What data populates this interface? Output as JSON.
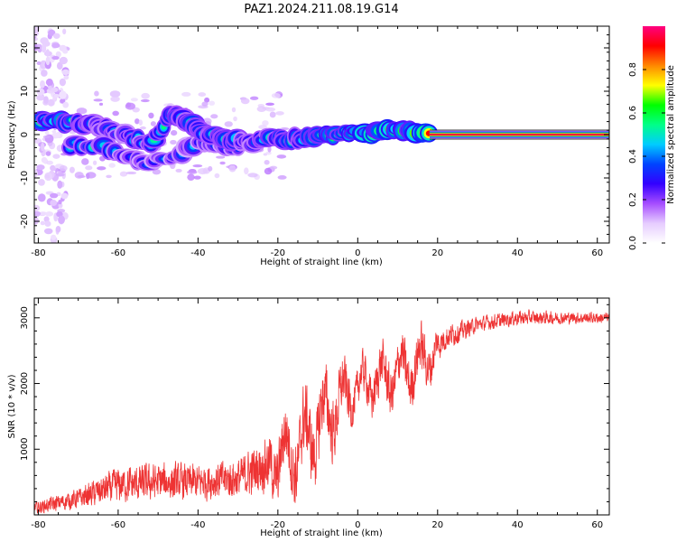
{
  "title": "PAZ1.2024.211.08.19.G14",
  "chart_data": [
    {
      "type": "heatmap",
      "xlabel": "Height of straight line (km)",
      "ylabel": "Frequency (Hz)",
      "xlim": [
        -81,
        63
      ],
      "ylim": [
        -25,
        25
      ],
      "xticks": [
        -80,
        -60,
        -40,
        -20,
        0,
        20,
        40,
        60
      ],
      "yticks": [
        -20,
        -10,
        0,
        10,
        20
      ],
      "colorbar": {
        "label": "Normalized spectral amplitude",
        "ticks": [
          0.0,
          0.2,
          0.4,
          0.6,
          0.8
        ],
        "range": [
          0,
          1
        ],
        "colormap": [
          "#ffffff",
          "#e6ccff",
          "#a64dff",
          "#3300ff",
          "#0044ff",
          "#00ccff",
          "#00ff88",
          "#00ff00",
          "#ffff00",
          "#ff8800",
          "#ff0000",
          "#ff0080"
        ]
      },
      "ridge": [
        {
          "x": -78,
          "f": 3.5,
          "a": 0.7
        },
        {
          "x": -74,
          "f": 3.0,
          "a": 0.8
        },
        {
          "x": -70,
          "f": 2.8,
          "a": 0.6
        },
        {
          "x": -66,
          "f": 2.0,
          "a": 0.55
        },
        {
          "x": -62,
          "f": 1.0,
          "a": 0.5
        },
        {
          "x": -58,
          "f": 0.0,
          "a": 0.5
        },
        {
          "x": -55,
          "f": -1.5,
          "a": 0.55
        },
        {
          "x": -52,
          "f": -2.5,
          "a": 0.5
        },
        {
          "x": -47,
          "f": 4.5,
          "a": 0.65
        },
        {
          "x": -43,
          "f": 3.5,
          "a": 0.6
        },
        {
          "x": -38,
          "f": 0.5,
          "a": 0.55
        },
        {
          "x": -34,
          "f": -0.5,
          "a": 0.6
        },
        {
          "x": -30,
          "f": -1.5,
          "a": 0.55
        },
        {
          "x": -26,
          "f": -2.0,
          "a": 0.5
        },
        {
          "x": -22,
          "f": -0.5,
          "a": 0.55
        },
        {
          "x": -18,
          "f": -1.0,
          "a": 0.6
        },
        {
          "x": -14,
          "f": -1.0,
          "a": 0.6
        },
        {
          "x": -10,
          "f": -0.5,
          "a": 0.65
        },
        {
          "x": -6,
          "f": 0.0,
          "a": 0.75
        },
        {
          "x": -2,
          "f": 0.5,
          "a": 0.8
        },
        {
          "x": 2,
          "f": 0.5,
          "a": 0.85
        },
        {
          "x": 6,
          "f": 0.5,
          "a": 0.9
        },
        {
          "x": 10,
          "f": 1.5,
          "a": 0.8
        },
        {
          "x": 14,
          "f": 0.5,
          "a": 0.85
        },
        {
          "x": 18,
          "f": 0.0,
          "a": 0.9
        },
        {
          "x": 24,
          "f": 0.0,
          "a": 0.95
        },
        {
          "x": 35,
          "f": 0.0,
          "a": 1.0
        },
        {
          "x": 50,
          "f": 0.0,
          "a": 1.0
        },
        {
          "x": 63,
          "f": 0.0,
          "a": 1.0
        }
      ],
      "secondary_branch": [
        {
          "x": -70,
          "f": -2.5,
          "a": 0.5
        },
        {
          "x": -64,
          "f": -3.0,
          "a": 0.55
        },
        {
          "x": -58,
          "f": -4.5,
          "a": 0.45
        },
        {
          "x": -52,
          "f": -6.5,
          "a": 0.4
        },
        {
          "x": -46,
          "f": -5.0,
          "a": 0.4
        },
        {
          "x": -40,
          "f": -2.0,
          "a": 0.45
        },
        {
          "x": -30,
          "f": -3.5,
          "a": 0.4
        }
      ]
    },
    {
      "type": "line",
      "xlabel": "Height of straight line (km)",
      "ylabel": "SNR (10 * v/v)",
      "xlim": [
        -81,
        63
      ],
      "ylim": [
        0,
        3300
      ],
      "xticks": [
        -80,
        -60,
        -40,
        -20,
        0,
        20,
        40,
        60
      ],
      "yticks": [
        1000,
        2000,
        3000
      ],
      "series": [
        {
          "color": "#ee3333",
          "trend": [
            {
              "x": -81,
              "y": 100,
              "noise": 120
            },
            {
              "x": -70,
              "y": 250,
              "noise": 200
            },
            {
              "x": -60,
              "y": 450,
              "noise": 350
            },
            {
              "x": -50,
              "y": 500,
              "noise": 380
            },
            {
              "x": -40,
              "y": 500,
              "noise": 350
            },
            {
              "x": -30,
              "y": 550,
              "noise": 400
            },
            {
              "x": -22,
              "y": 800,
              "noise": 550
            },
            {
              "x": -15,
              "y": 1000,
              "noise": 700
            },
            {
              "x": -8,
              "y": 1500,
              "noise": 700
            },
            {
              "x": 0,
              "y": 1950,
              "noise": 400
            },
            {
              "x": 8,
              "y": 2100,
              "noise": 500
            },
            {
              "x": 16,
              "y": 2300,
              "noise": 500
            },
            {
              "x": 22,
              "y": 2700,
              "noise": 250
            },
            {
              "x": 30,
              "y": 2900,
              "noise": 150
            },
            {
              "x": 40,
              "y": 3000,
              "noise": 150
            },
            {
              "x": 50,
              "y": 3000,
              "noise": 120
            },
            {
              "x": 63,
              "y": 3000,
              "noise": 110
            }
          ]
        }
      ]
    }
  ]
}
